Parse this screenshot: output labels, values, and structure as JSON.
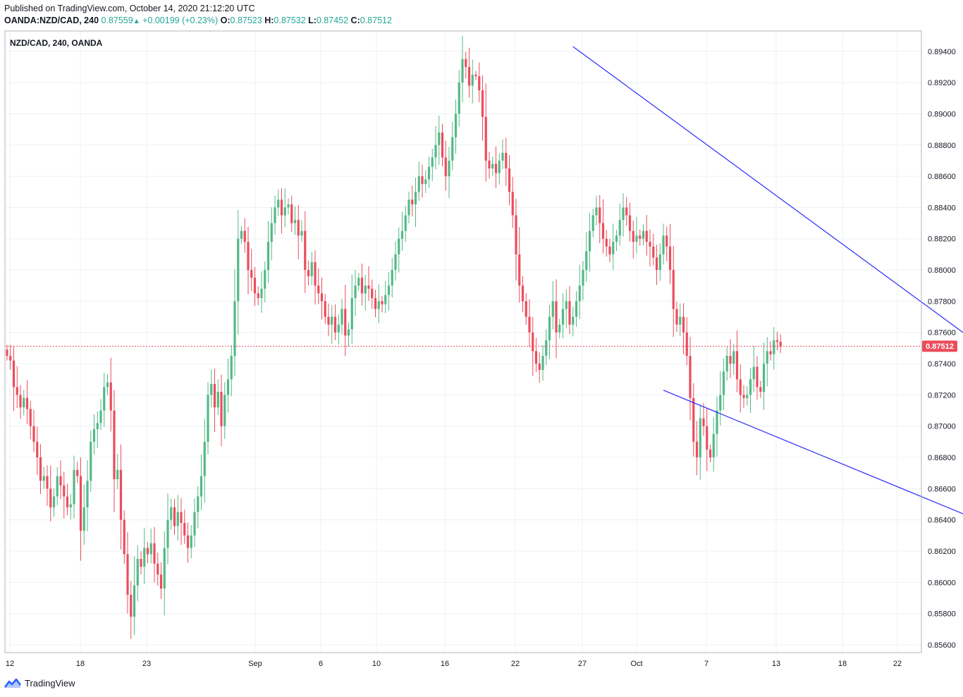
{
  "header": {
    "published": "Published on TradingView.com, October 14, 2020 21:12:20 UTC",
    "symbol": "OANDA:NZD/CAD, 240",
    "last": "0.87559",
    "change": "+0.00199 (+0.23%)",
    "o_label": "O:",
    "o": "0.87523",
    "h_label": "H:",
    "h": "0.87532",
    "l_label": "L:",
    "l": "0.87452",
    "c_label": "C:",
    "c": "0.87512"
  },
  "footer": {
    "brand": "TradingView"
  },
  "colors": {
    "up": "#53b987",
    "down": "#eb4d5c",
    "trendline": "#2b2bff",
    "price_line": "#eb4d5c",
    "grid": "#eef0f3",
    "axis": "#b2b5be"
  },
  "chart_data": {
    "type": "candlestick",
    "title": "NZD/CAD, 240, OANDA",
    "xlabel": "",
    "ylabel": "",
    "ylim": [
      0.8555,
      0.8953
    ],
    "x_ticks": [
      "12",
      "18",
      "23",
      "Sep",
      "6",
      "10",
      "16",
      "22",
      "27",
      "Oct",
      "7",
      "13",
      "18",
      "22"
    ],
    "y_ticks": [
      "0.89400",
      "0.89200",
      "0.89000",
      "0.88800",
      "0.88600",
      "0.88400",
      "0.88200",
      "0.88000",
      "0.87800",
      "0.87600",
      "0.87400",
      "0.87200",
      "0.87000",
      "0.86800",
      "0.86600",
      "0.86400",
      "0.86200",
      "0.86000",
      "0.85800",
      "0.85600"
    ],
    "last_price_label": "0.87512",
    "last_price": 0.87512,
    "closes": [
      0.8745,
      0.8742,
      0.8725,
      0.872,
      0.8712,
      0.8718,
      0.8711,
      0.87,
      0.869,
      0.868,
      0.8665,
      0.8668,
      0.866,
      0.8648,
      0.8655,
      0.8668,
      0.8662,
      0.8655,
      0.8648,
      0.865,
      0.8672,
      0.8668,
      0.8633,
      0.8648,
      0.8665,
      0.869,
      0.8698,
      0.8702,
      0.871,
      0.8725,
      0.8728,
      0.871,
      0.8666,
      0.8672,
      0.864,
      0.8618,
      0.8592,
      0.8578,
      0.8598,
      0.8615,
      0.861,
      0.8622,
      0.8618,
      0.8625,
      0.8612,
      0.8605,
      0.8596,
      0.8622,
      0.864,
      0.8648,
      0.8636,
      0.8645,
      0.8638,
      0.863,
      0.8622,
      0.863,
      0.8645,
      0.8655,
      0.8668,
      0.869,
      0.872,
      0.8727,
      0.8712,
      0.8722,
      0.87,
      0.872,
      0.873,
      0.8745,
      0.878,
      0.882,
      0.8825,
      0.8818,
      0.88,
      0.8795,
      0.8785,
      0.8782,
      0.8788,
      0.88,
      0.8818,
      0.883,
      0.884,
      0.8845,
      0.8835,
      0.884,
      0.8842,
      0.883,
      0.8832,
      0.8822,
      0.8825,
      0.88,
      0.8796,
      0.8805,
      0.879,
      0.8785,
      0.878,
      0.877,
      0.8765,
      0.877,
      0.876,
      0.8765,
      0.8775,
      0.8758,
      0.8762,
      0.8782,
      0.879,
      0.8795,
      0.8785,
      0.879,
      0.8788,
      0.8782,
      0.8775,
      0.878,
      0.8778,
      0.8784,
      0.879,
      0.88,
      0.881,
      0.882,
      0.8825,
      0.8835,
      0.8845,
      0.8842,
      0.885,
      0.886,
      0.8855,
      0.8858,
      0.8866,
      0.8872,
      0.888,
      0.8888,
      0.8872,
      0.886,
      0.887,
      0.8885,
      0.89,
      0.892,
      0.8935,
      0.893,
      0.8918,
      0.8925,
      0.8924,
      0.8915,
      0.8898,
      0.887,
      0.8865,
      0.8868,
      0.8862,
      0.887,
      0.8875,
      0.8865,
      0.885,
      0.8835,
      0.881,
      0.879,
      0.878,
      0.877,
      0.876,
      0.8748,
      0.874,
      0.8736,
      0.8745,
      0.8755,
      0.877,
      0.878,
      0.876,
      0.8765,
      0.8775,
      0.878,
      0.8765,
      0.877,
      0.878,
      0.879,
      0.88,
      0.8812,
      0.8825,
      0.8835,
      0.884,
      0.883,
      0.882,
      0.8815,
      0.881,
      0.8818,
      0.8822,
      0.8832,
      0.884,
      0.8835,
      0.8825,
      0.8818,
      0.8822,
      0.882,
      0.8825,
      0.8818,
      0.8815,
      0.8808,
      0.88,
      0.881,
      0.8822,
      0.8815,
      0.88,
      0.8775,
      0.8765,
      0.877,
      0.876,
      0.8745,
      0.8718,
      0.869,
      0.868,
      0.8705,
      0.87,
      0.8685,
      0.868,
      0.8695,
      0.871,
      0.872,
      0.8735,
      0.8745,
      0.874,
      0.8748,
      0.873,
      0.872,
      0.8718,
      0.872,
      0.873,
      0.8738,
      0.8725,
      0.8722,
      0.874,
      0.8748,
      0.8746,
      0.8755,
      0.8754,
      0.8751
    ]
  },
  "annotations": {
    "upper_trendline": {
      "from": {
        "bar": 169,
        "price": 0.8943
      },
      "to": {
        "bar": 309,
        "price": 0.8723
      }
    },
    "lower_trendline": {
      "from": {
        "bar": 196,
        "price": 0.8723
      },
      "to": {
        "bar": 291,
        "price": 0.8639
      }
    }
  }
}
